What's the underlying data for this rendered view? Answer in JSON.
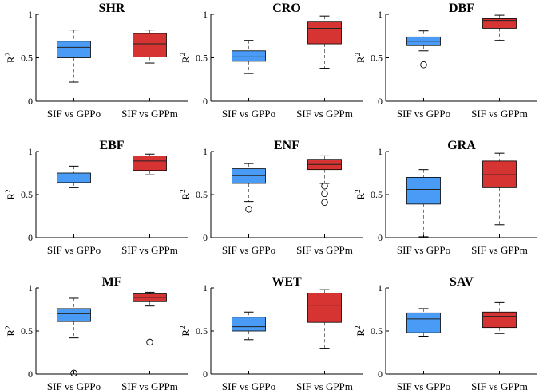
{
  "colors": {
    "gppo": "#4a9bf5",
    "gppm": "#d63333",
    "axis": "#000000",
    "whisker": "#777777"
  },
  "chart_data": [
    {
      "type": "box",
      "title": "SHR",
      "ylabel": "R",
      "ylabel_sup": "2",
      "ylim": [
        0,
        1
      ],
      "yticks": [
        "0",
        "0.5",
        "1"
      ],
      "categories": [
        "SIF vs GPPo",
        "SIF vs GPPm"
      ],
      "boxes": [
        {
          "min": 0.22,
          "q1": 0.5,
          "median": 0.62,
          "q3": 0.69,
          "max": 0.82,
          "outliers": []
        },
        {
          "min": 0.44,
          "q1": 0.51,
          "median": 0.66,
          "q3": 0.78,
          "max": 0.82,
          "outliers": []
        }
      ]
    },
    {
      "type": "box",
      "title": "CRO",
      "ylabel": "R",
      "ylabel_sup": "2",
      "ylim": [
        0,
        1
      ],
      "yticks": [
        "0",
        "0.5",
        "1"
      ],
      "categories": [
        "SIF vs GPPo",
        "SIF vs GPPm"
      ],
      "boxes": [
        {
          "min": 0.32,
          "q1": 0.46,
          "median": 0.51,
          "q3": 0.58,
          "max": 0.7,
          "outliers": []
        },
        {
          "min": 0.38,
          "q1": 0.66,
          "median": 0.84,
          "q3": 0.92,
          "max": 0.98,
          "outliers": []
        }
      ]
    },
    {
      "type": "box",
      "title": "DBF",
      "ylabel": "R",
      "ylabel_sup": "2",
      "ylim": [
        0,
        1
      ],
      "yticks": [
        "0",
        "0.5",
        "1"
      ],
      "categories": [
        "SIF vs GPPo",
        "SIF vs GPPm"
      ],
      "boxes": [
        {
          "min": 0.58,
          "q1": 0.64,
          "median": 0.69,
          "q3": 0.74,
          "max": 0.81,
          "outliers": [
            0.42
          ]
        },
        {
          "min": 0.7,
          "q1": 0.84,
          "median": 0.93,
          "q3": 0.95,
          "max": 0.99,
          "outliers": []
        }
      ]
    },
    {
      "type": "box",
      "title": "EBF",
      "ylabel": "R",
      "ylabel_sup": "2",
      "ylim": [
        0,
        1
      ],
      "yticks": [
        "0",
        "0.5",
        "1"
      ],
      "categories": [
        "SIF vs GPPo",
        "SIF vs GPPm"
      ],
      "boxes": [
        {
          "min": 0.58,
          "q1": 0.64,
          "median": 0.68,
          "q3": 0.75,
          "max": 0.83,
          "outliers": []
        },
        {
          "min": 0.73,
          "q1": 0.78,
          "median": 0.89,
          "q3": 0.95,
          "max": 0.97,
          "outliers": []
        }
      ]
    },
    {
      "type": "box",
      "title": "ENF",
      "ylabel": "R",
      "ylabel_sup": "2",
      "ylim": [
        0,
        1
      ],
      "yticks": [
        "0",
        "0.5",
        "1"
      ],
      "categories": [
        "SIF vs GPPo",
        "SIF vs GPPm"
      ],
      "boxes": [
        {
          "min": 0.42,
          "q1": 0.63,
          "median": 0.72,
          "q3": 0.8,
          "max": 0.86,
          "outliers": [
            0.33
          ]
        },
        {
          "min": 0.63,
          "q1": 0.79,
          "median": 0.85,
          "q3": 0.91,
          "max": 0.95,
          "outliers": [
            0.6,
            0.51,
            0.41
          ]
        }
      ]
    },
    {
      "type": "box",
      "title": "GRA",
      "ylabel": "R",
      "ylabel_sup": "2",
      "ylim": [
        0,
        1
      ],
      "yticks": [
        "0",
        "0.5",
        "1"
      ],
      "categories": [
        "SIF vs GPPo",
        "SIF vs GPPm"
      ],
      "boxes": [
        {
          "min": 0.01,
          "q1": 0.39,
          "median": 0.56,
          "q3": 0.7,
          "max": 0.79,
          "outliers": []
        },
        {
          "min": 0.15,
          "q1": 0.58,
          "median": 0.73,
          "q3": 0.89,
          "max": 0.98,
          "outliers": []
        }
      ]
    },
    {
      "type": "box",
      "title": "MF",
      "ylabel": "R",
      "ylabel_sup": "2",
      "ylim": [
        0,
        1
      ],
      "yticks": [
        "0",
        "0.5",
        "1"
      ],
      "categories": [
        "SIF vs GPPo",
        "SIF vs GPPm"
      ],
      "boxes": [
        {
          "min": 0.42,
          "q1": 0.61,
          "median": 0.7,
          "q3": 0.76,
          "max": 0.88,
          "outliers": [
            0.01
          ]
        },
        {
          "min": 0.79,
          "q1": 0.84,
          "median": 0.89,
          "q3": 0.93,
          "max": 0.95,
          "outliers": [
            0.37
          ]
        }
      ]
    },
    {
      "type": "box",
      "title": "WET",
      "ylabel": "R",
      "ylabel_sup": "2",
      "ylim": [
        0,
        1
      ],
      "yticks": [
        "0",
        "0.5",
        "1"
      ],
      "categories": [
        "SIF vs GPPo",
        "SIF vs GPPm"
      ],
      "boxes": [
        {
          "min": 0.4,
          "q1": 0.5,
          "median": 0.55,
          "q3": 0.66,
          "max": 0.72,
          "outliers": []
        },
        {
          "min": 0.3,
          "q1": 0.6,
          "median": 0.8,
          "q3": 0.94,
          "max": 0.98,
          "outliers": []
        }
      ]
    },
    {
      "type": "box",
      "title": "SAV",
      "ylabel": "R",
      "ylabel_sup": "2",
      "ylim": [
        0,
        1
      ],
      "yticks": [
        "0",
        "0.5",
        "1"
      ],
      "categories": [
        "SIF vs GPPo",
        "SIF vs GPPm"
      ],
      "boxes": [
        {
          "min": 0.44,
          "q1": 0.48,
          "median": 0.64,
          "q3": 0.71,
          "max": 0.76,
          "outliers": []
        },
        {
          "min": 0.47,
          "q1": 0.54,
          "median": 0.67,
          "q3": 0.72,
          "max": 0.83,
          "outliers": []
        }
      ]
    }
  ]
}
